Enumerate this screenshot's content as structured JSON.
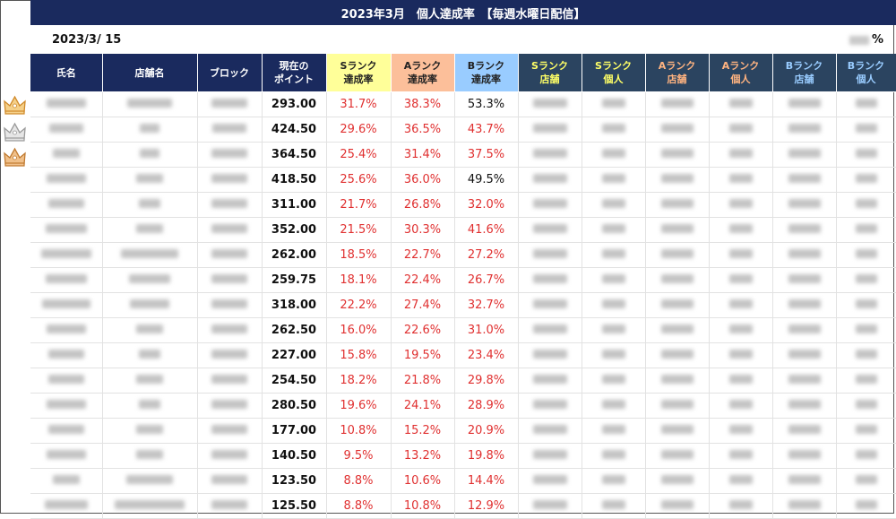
{
  "header": {
    "title": "2023年3月　個人達成率　【毎週水曜日配信】",
    "date": "2023/3/ 15",
    "percent_sign": "%"
  },
  "columns": [
    {
      "line1": "氏名",
      "line2": ""
    },
    {
      "line1": "店舗名",
      "line2": ""
    },
    {
      "line1": "ブロック",
      "line2": ""
    },
    {
      "line1": "現在の",
      "line2": "ポイント"
    },
    {
      "line1": "Sランク",
      "line2": "達成率"
    },
    {
      "line1": "Aランク",
      "line2": "達成率"
    },
    {
      "line1": "Bランク",
      "line2": "達成率"
    },
    {
      "line1": "Sランク",
      "line2": "店舗"
    },
    {
      "line1": "Sランク",
      "line2": "個人"
    },
    {
      "line1": "Aランク",
      "line2": "店舗"
    },
    {
      "line1": "Aランク",
      "line2": "個人"
    },
    {
      "line1": "Bランク",
      "line2": "店舗"
    },
    {
      "line1": "Bランク",
      "line2": "個人"
    }
  ],
  "rows": [
    {
      "points": "293.00",
      "s": "31.7%",
      "a": "38.3%",
      "b": "53.3%",
      "b_achieved": true,
      "crown": "gold"
    },
    {
      "points": "424.50",
      "s": "29.6%",
      "a": "36.5%",
      "b": "43.7%",
      "b_achieved": false,
      "crown": "silver"
    },
    {
      "points": "364.50",
      "s": "25.4%",
      "a": "31.4%",
      "b": "37.5%",
      "b_achieved": false,
      "crown": "bronze"
    },
    {
      "points": "418.50",
      "s": "25.6%",
      "a": "36.0%",
      "b": "49.5%",
      "b_achieved": true,
      "crown": ""
    },
    {
      "points": "311.00",
      "s": "21.7%",
      "a": "26.8%",
      "b": "32.0%",
      "b_achieved": false,
      "crown": ""
    },
    {
      "points": "352.00",
      "s": "21.5%",
      "a": "30.3%",
      "b": "41.6%",
      "b_achieved": false,
      "crown": ""
    },
    {
      "points": "262.00",
      "s": "18.5%",
      "a": "22.7%",
      "b": "27.2%",
      "b_achieved": false,
      "crown": ""
    },
    {
      "points": "259.75",
      "s": "18.1%",
      "a": "22.4%",
      "b": "26.7%",
      "b_achieved": false,
      "crown": ""
    },
    {
      "points": "318.00",
      "s": "22.2%",
      "a": "27.4%",
      "b": "32.7%",
      "b_achieved": false,
      "crown": ""
    },
    {
      "points": "262.50",
      "s": "16.0%",
      "a": "22.6%",
      "b": "31.0%",
      "b_achieved": false,
      "crown": ""
    },
    {
      "points": "227.00",
      "s": "15.8%",
      "a": "19.5%",
      "b": "23.4%",
      "b_achieved": false,
      "crown": ""
    },
    {
      "points": "254.50",
      "s": "18.2%",
      "a": "21.8%",
      "b": "29.8%",
      "b_achieved": false,
      "crown": ""
    },
    {
      "points": "280.50",
      "s": "19.6%",
      "a": "24.1%",
      "b": "28.9%",
      "b_achieved": false,
      "crown": ""
    },
    {
      "points": "177.00",
      "s": "10.8%",
      "a": "15.2%",
      "b": "20.9%",
      "b_achieved": false,
      "crown": ""
    },
    {
      "points": "140.50",
      "s": "9.5%",
      "a": "13.2%",
      "b": "19.8%",
      "b_achieved": false,
      "crown": ""
    },
    {
      "points": "123.50",
      "s": "8.8%",
      "a": "10.6%",
      "b": "14.4%",
      "b_achieved": false,
      "crown": ""
    },
    {
      "points": "125.50",
      "s": "8.8%",
      "a": "10.8%",
      "b": "12.9%",
      "b_achieved": false,
      "crown": ""
    }
  ],
  "colors": {
    "navy": "#1a2a5e",
    "dark_slate": "#2b4460",
    "s_header": "#ffff99",
    "a_header": "#fcbf9a",
    "b_header": "#99ccff",
    "rate_red": "#e03030",
    "gold": "#e3a84a",
    "silver": "#b8b8b8",
    "bronze": "#d99a4a"
  }
}
